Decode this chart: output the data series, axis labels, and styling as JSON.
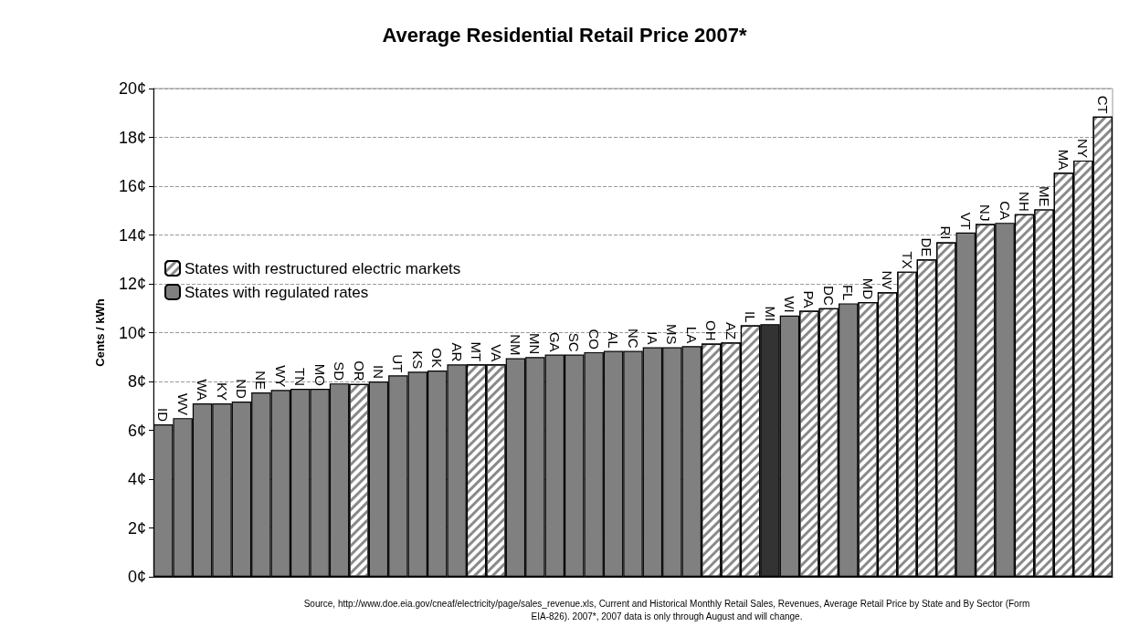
{
  "chart_data": {
    "type": "bar",
    "title": "Average Residential Retail Price 2007*",
    "ylabel": "Cents / kWh",
    "categories": [
      "ID",
      "WV",
      "WA",
      "KY",
      "ND",
      "NE",
      "WY",
      "TN",
      "MO",
      "SD",
      "OR",
      "IN",
      "UT",
      "KS",
      "OK",
      "AR",
      "MT",
      "VA",
      "NM",
      "MN",
      "GA",
      "SC",
      "CO",
      "AL",
      "NC",
      "IA",
      "MS",
      "LA",
      "OH",
      "AZ",
      "IL",
      "MI",
      "WI",
      "PA",
      "DC",
      "FL",
      "MD",
      "NV",
      "TX",
      "DE",
      "RI",
      "VT",
      "NJ",
      "CA",
      "NH",
      "ME",
      "MA",
      "NY",
      "CT"
    ],
    "series": [
      {
        "name": "States with restructured electric markets",
        "color": "#ffffff",
        "values": [
          null,
          null,
          null,
          null,
          null,
          null,
          null,
          null,
          null,
          null,
          7.9,
          null,
          null,
          null,
          null,
          null,
          8.7,
          8.7,
          null,
          null,
          null,
          null,
          null,
          null,
          null,
          null,
          null,
          null,
          9.55,
          9.6,
          10.3,
          null,
          null,
          10.9,
          11.0,
          null,
          11.25,
          11.65,
          12.5,
          13.0,
          13.7,
          null,
          14.45,
          null,
          14.85,
          15.05,
          16.55,
          17.05,
          18.85
        ]
      },
      {
        "name": "States with regulated rates",
        "color": "#808080",
        "values": [
          6.24,
          6.5,
          7.1,
          7.1,
          7.18,
          7.55,
          7.65,
          7.7,
          7.7,
          7.92,
          null,
          8.0,
          8.25,
          8.4,
          8.45,
          8.7,
          null,
          null,
          8.95,
          9.0,
          9.1,
          9.1,
          9.2,
          9.25,
          9.25,
          9.4,
          9.4,
          9.45,
          null,
          null,
          null,
          null,
          10.7,
          null,
          null,
          11.2,
          null,
          null,
          null,
          null,
          null,
          14.1,
          null,
          14.5,
          null,
          null,
          null,
          null,
          null
        ]
      },
      {
        "color": "#333333",
        "values": [
          null,
          null,
          null,
          null,
          null,
          null,
          null,
          null,
          null,
          null,
          null,
          null,
          null,
          null,
          null,
          null,
          null,
          null,
          null,
          null,
          null,
          null,
          null,
          null,
          null,
          null,
          null,
          null,
          null,
          null,
          null,
          10.35,
          null,
          null,
          null,
          null,
          null,
          null,
          null,
          null,
          null,
          null,
          null,
          null,
          null,
          null,
          null,
          null,
          null
        ]
      }
    ],
    "ylim": [
      0,
      20
    ],
    "yticks": [
      {
        "value": 0,
        "label": "0¢"
      },
      {
        "value": 2,
        "label": "2¢"
      },
      {
        "value": 4,
        "label": "4¢"
      },
      {
        "value": 6,
        "label": "6¢"
      },
      {
        "value": 8,
        "label": "8¢"
      },
      {
        "value": 10,
        "label": "10¢"
      },
      {
        "value": 12,
        "label": "12¢"
      },
      {
        "value": 14,
        "label": "14¢"
      },
      {
        "value": 16,
        "label": "16¢"
      },
      {
        "value": 18,
        "label": "18¢"
      },
      {
        "value": 20,
        "label": "20¢"
      }
    ],
    "grid": "y",
    "legend": "left",
    "tick_labels": "y",
    "annotations": [
      "Source, http://www.doe.eia.gov/cneaf/electricity/page/sales_revenue.xls, Current and Historical Monthly Retail Sales, Revenues, Average Retail Price by State and By Sector (Form EIA-826). 2007*, 2007 data is only through August and will change."
    ]
  }
}
